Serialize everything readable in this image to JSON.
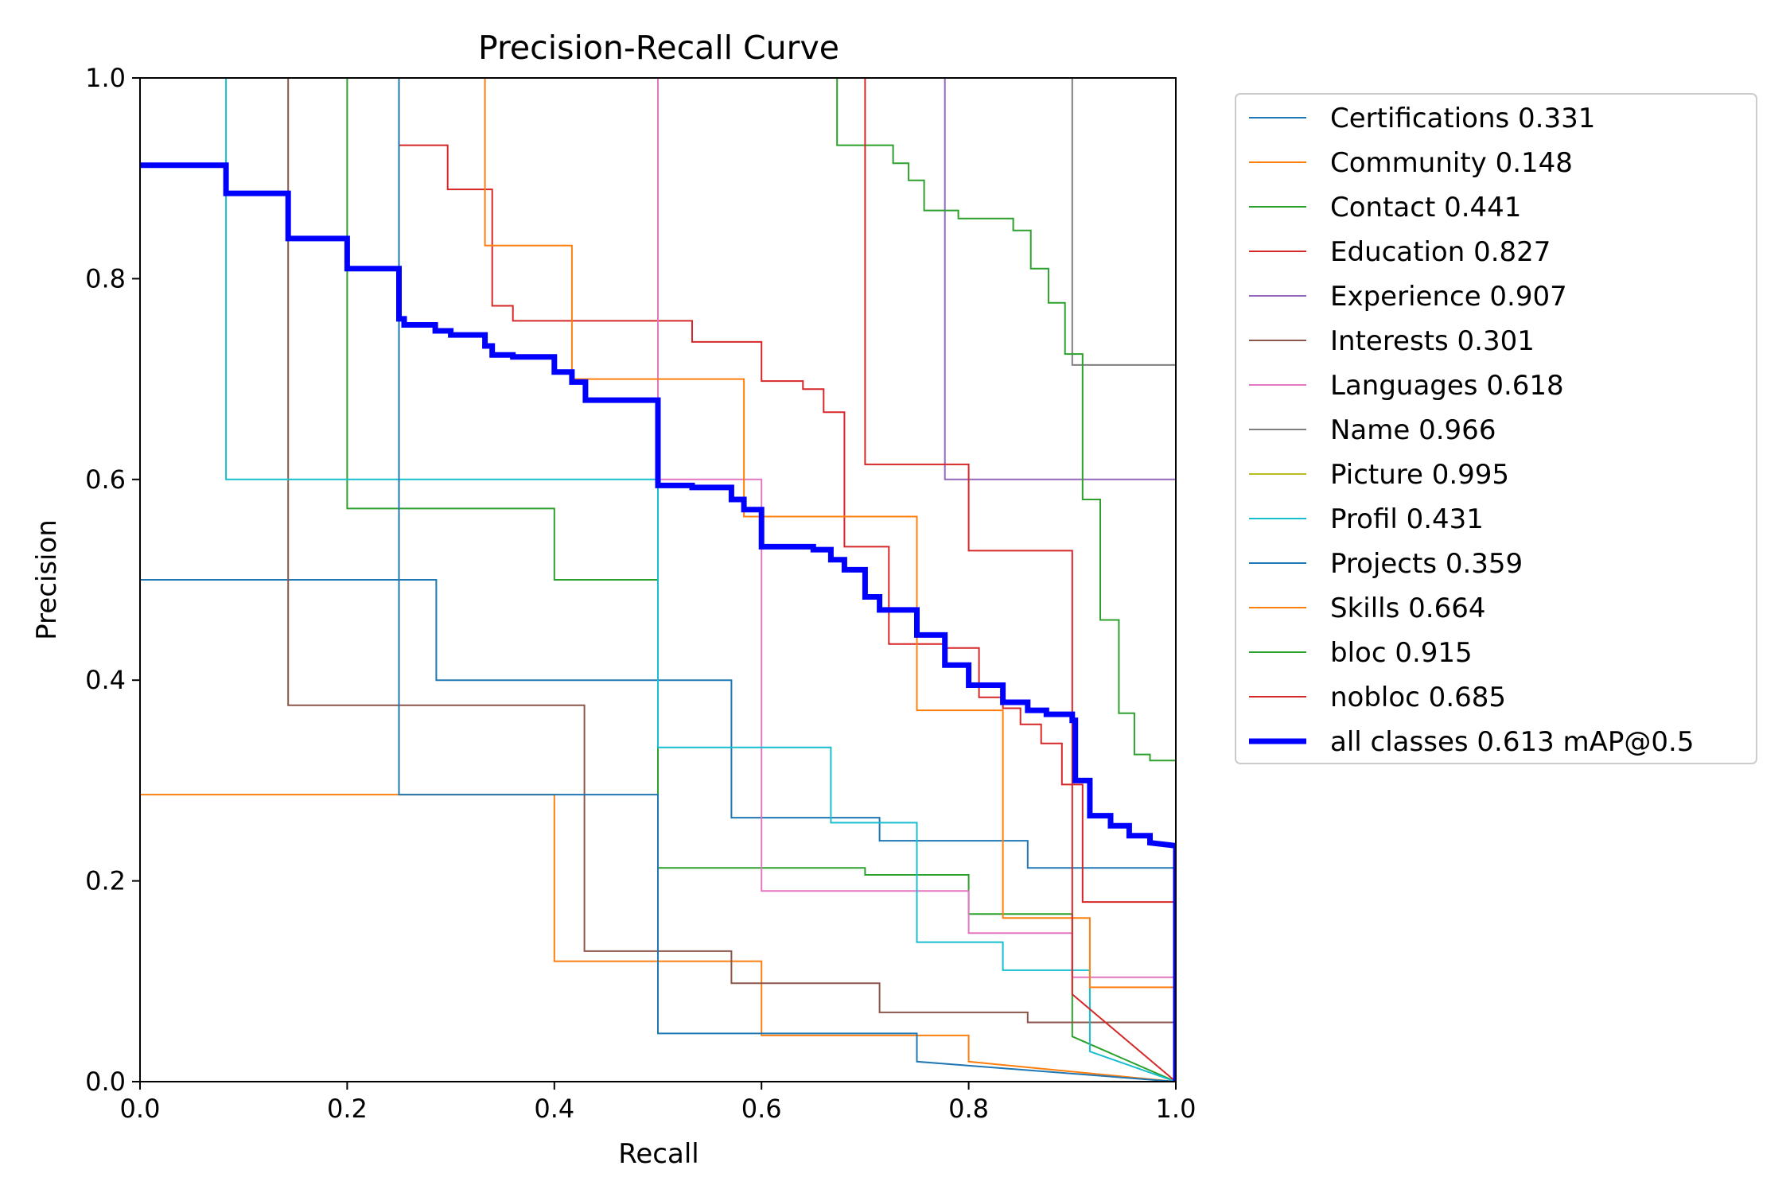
{
  "chart_data": {
    "type": "line",
    "title": "Precision-Recall Curve",
    "xlabel": "Recall",
    "ylabel": "Precision",
    "xlim": [
      0,
      1
    ],
    "ylim": [
      0,
      1
    ],
    "x_ticks": [
      "0.0",
      "0.2",
      "0.4",
      "0.6",
      "0.8",
      "1.0"
    ],
    "y_ticks": [
      "0.0",
      "0.2",
      "0.4",
      "0.6",
      "0.8",
      "1.0"
    ],
    "grid": false,
    "legend_position": "outside-right",
    "series": [
      {
        "name": "Certifications 0.331",
        "color": "#1f77b4",
        "width": 2,
        "points": [
          [
            0,
            0.5
          ],
          [
            0.286,
            0.5
          ],
          [
            0.286,
            0.4
          ],
          [
            0.571,
            0.4
          ],
          [
            0.571,
            0.263
          ],
          [
            0.714,
            0.263
          ],
          [
            0.714,
            0.24
          ],
          [
            0.857,
            0.24
          ],
          [
            0.857,
            0.213
          ],
          [
            1,
            0.213
          ],
          [
            1,
            0
          ]
        ]
      },
      {
        "name": "Community 0.148",
        "color": "#ff7f0e",
        "width": 2,
        "points": [
          [
            0,
            0.286
          ],
          [
            0.4,
            0.286
          ],
          [
            0.4,
            0.12
          ],
          [
            0.6,
            0.12
          ],
          [
            0.6,
            0.046
          ],
          [
            0.8,
            0.046
          ],
          [
            0.8,
            0.02
          ],
          [
            1,
            0
          ]
        ]
      },
      {
        "name": "Contact 0.441",
        "color": "#2ca02c",
        "width": 2,
        "points": [
          [
            0.2,
            1
          ],
          [
            0.2,
            0.571
          ],
          [
            0.4,
            0.571
          ],
          [
            0.4,
            0.5
          ],
          [
            0.5,
            0.5
          ],
          [
            0.5,
            0.213
          ],
          [
            0.7,
            0.213
          ],
          [
            0.7,
            0.206
          ],
          [
            0.8,
            0.206
          ],
          [
            0.8,
            0.167
          ],
          [
            0.9,
            0.167
          ],
          [
            0.9,
            0.045
          ],
          [
            1,
            0
          ]
        ]
      },
      {
        "name": "Education 0.827",
        "color": "#d62728",
        "width": 2,
        "points": [
          [
            0.25,
            1
          ],
          [
            0.25,
            0.933
          ],
          [
            0.297,
            0.933
          ],
          [
            0.297,
            0.889
          ],
          [
            0.34,
            0.889
          ],
          [
            0.34,
            0.773
          ],
          [
            0.36,
            0.773
          ],
          [
            0.36,
            0.758
          ],
          [
            0.533,
            0.758
          ],
          [
            0.533,
            0.737
          ],
          [
            0.6,
            0.737
          ],
          [
            0.6,
            0.698
          ],
          [
            0.64,
            0.698
          ],
          [
            0.64,
            0.69
          ],
          [
            0.66,
            0.69
          ],
          [
            0.66,
            0.667
          ],
          [
            0.68,
            0.667
          ],
          [
            0.68,
            0.533
          ],
          [
            0.723,
            0.533
          ],
          [
            0.723,
            0.436
          ],
          [
            0.777,
            0.436
          ],
          [
            0.777,
            0.432
          ],
          [
            0.81,
            0.432
          ],
          [
            0.81,
            0.383
          ],
          [
            0.833,
            0.383
          ],
          [
            0.833,
            0.372
          ],
          [
            0.85,
            0.372
          ],
          [
            0.85,
            0.356
          ],
          [
            0.87,
            0.356
          ],
          [
            0.87,
            0.337
          ],
          [
            0.89,
            0.337
          ],
          [
            0.89,
            0.296
          ],
          [
            0.91,
            0.296
          ],
          [
            0.91,
            0.179
          ],
          [
            1,
            0.179
          ],
          [
            1,
            0
          ]
        ]
      },
      {
        "name": "Experience 0.907",
        "color": "#9467bd",
        "width": 2,
        "points": [
          [
            0.777,
            1
          ],
          [
            0.777,
            0.6
          ],
          [
            1,
            0.6
          ],
          [
            1,
            0
          ]
        ]
      },
      {
        "name": "Interests 0.301",
        "color": "#8c564b",
        "width": 2,
        "points": [
          [
            0.143,
            1
          ],
          [
            0.143,
            0.375
          ],
          [
            0.429,
            0.375
          ],
          [
            0.429,
            0.13
          ],
          [
            0.571,
            0.13
          ],
          [
            0.571,
            0.098
          ],
          [
            0.714,
            0.098
          ],
          [
            0.714,
            0.069
          ],
          [
            0.857,
            0.069
          ],
          [
            0.857,
            0.059
          ],
          [
            1,
            0.059
          ],
          [
            1,
            0
          ]
        ]
      },
      {
        "name": "Languages 0.618",
        "color": "#e377c2",
        "width": 2,
        "points": [
          [
            0.5,
            1
          ],
          [
            0.5,
            0.6
          ],
          [
            0.6,
            0.6
          ],
          [
            0.6,
            0.19
          ],
          [
            0.8,
            0.19
          ],
          [
            0.8,
            0.148
          ],
          [
            0.9,
            0.148
          ],
          [
            0.9,
            0.104
          ],
          [
            1,
            0.104
          ],
          [
            1,
            0
          ]
        ]
      },
      {
        "name": "Name 0.966",
        "color": "#7f7f7f",
        "width": 2,
        "points": [
          [
            0.9,
            1
          ],
          [
            0.9,
            0.714
          ],
          [
            1,
            0.714
          ],
          [
            1,
            0
          ]
        ]
      },
      {
        "name": "Picture 0.995",
        "color": "#bcbd22",
        "width": 2,
        "points": [
          [
            1,
            1
          ],
          [
            1,
            0
          ]
        ]
      },
      {
        "name": "Profil 0.431",
        "color": "#17becf",
        "width": 2,
        "points": [
          [
            0.083,
            1
          ],
          [
            0.083,
            0.6
          ],
          [
            0.5,
            0.6
          ],
          [
            0.5,
            0.333
          ],
          [
            0.667,
            0.333
          ],
          [
            0.667,
            0.258
          ],
          [
            0.75,
            0.258
          ],
          [
            0.75,
            0.139
          ],
          [
            0.833,
            0.139
          ],
          [
            0.833,
            0.111
          ],
          [
            0.917,
            0.111
          ],
          [
            0.917,
            0.03
          ],
          [
            1,
            0
          ]
        ]
      },
      {
        "name": "Projects 0.359",
        "color": "#1f77b4",
        "width": 2,
        "points": [
          [
            0.25,
            1
          ],
          [
            0.25,
            0.286
          ],
          [
            0.5,
            0.286
          ],
          [
            0.5,
            0.048
          ],
          [
            0.75,
            0.048
          ],
          [
            0.75,
            0.02
          ],
          [
            1,
            0
          ]
        ]
      },
      {
        "name": "Skills 0.664",
        "color": "#ff7f0e",
        "width": 2,
        "points": [
          [
            0.333,
            1
          ],
          [
            0.333,
            0.833
          ],
          [
            0.417,
            0.833
          ],
          [
            0.417,
            0.7
          ],
          [
            0.583,
            0.7
          ],
          [
            0.583,
            0.563
          ],
          [
            0.75,
            0.563
          ],
          [
            0.75,
            0.37
          ],
          [
            0.833,
            0.37
          ],
          [
            0.833,
            0.163
          ],
          [
            0.917,
            0.163
          ],
          [
            0.917,
            0.094
          ],
          [
            1,
            0.094
          ],
          [
            1,
            0
          ]
        ]
      },
      {
        "name": "bloc 0.915",
        "color": "#2ca02c",
        "width": 2,
        "points": [
          [
            0.673,
            1
          ],
          [
            0.673,
            0.933
          ],
          [
            0.727,
            0.933
          ],
          [
            0.727,
            0.915
          ],
          [
            0.742,
            0.915
          ],
          [
            0.742,
            0.898
          ],
          [
            0.757,
            0.898
          ],
          [
            0.757,
            0.868
          ],
          [
            0.79,
            0.868
          ],
          [
            0.79,
            0.86
          ],
          [
            0.843,
            0.86
          ],
          [
            0.843,
            0.848
          ],
          [
            0.86,
            0.848
          ],
          [
            0.86,
            0.81
          ],
          [
            0.877,
            0.81
          ],
          [
            0.877,
            0.776
          ],
          [
            0.893,
            0.776
          ],
          [
            0.893,
            0.725
          ],
          [
            0.91,
            0.725
          ],
          [
            0.91,
            0.58
          ],
          [
            0.927,
            0.58
          ],
          [
            0.927,
            0.46
          ],
          [
            0.945,
            0.46
          ],
          [
            0.945,
            0.367
          ],
          [
            0.96,
            0.367
          ],
          [
            0.96,
            0.326
          ],
          [
            0.975,
            0.326
          ],
          [
            0.975,
            0.32
          ],
          [
            1,
            0.32
          ],
          [
            1,
            0
          ]
        ]
      },
      {
        "name": "nobloc 0.685",
        "color": "#d62728",
        "width": 2,
        "points": [
          [
            0.7,
            1
          ],
          [
            0.7,
            0.615
          ],
          [
            0.8,
            0.615
          ],
          [
            0.8,
            0.529
          ],
          [
            0.9,
            0.529
          ],
          [
            0.9,
            0.087
          ],
          [
            1,
            0
          ]
        ]
      },
      {
        "name": "all classes 0.613 mAP@0.5",
        "color": "#0000ff",
        "width": 7,
        "points": [
          [
            0,
            0.913
          ],
          [
            0.083,
            0.913
          ],
          [
            0.083,
            0.885
          ],
          [
            0.143,
            0.885
          ],
          [
            0.143,
            0.84
          ],
          [
            0.2,
            0.84
          ],
          [
            0.2,
            0.81
          ],
          [
            0.25,
            0.81
          ],
          [
            0.25,
            0.76
          ],
          [
            0.255,
            0.76
          ],
          [
            0.255,
            0.754
          ],
          [
            0.285,
            0.754
          ],
          [
            0.285,
            0.748
          ],
          [
            0.3,
            0.748
          ],
          [
            0.3,
            0.744
          ],
          [
            0.333,
            0.744
          ],
          [
            0.333,
            0.733
          ],
          [
            0.34,
            0.733
          ],
          [
            0.34,
            0.724
          ],
          [
            0.36,
            0.724
          ],
          [
            0.36,
            0.722
          ],
          [
            0.4,
            0.722
          ],
          [
            0.4,
            0.707
          ],
          [
            0.417,
            0.707
          ],
          [
            0.417,
            0.697
          ],
          [
            0.43,
            0.697
          ],
          [
            0.43,
            0.679
          ],
          [
            0.5,
            0.679
          ],
          [
            0.5,
            0.594
          ],
          [
            0.533,
            0.594
          ],
          [
            0.533,
            0.592
          ],
          [
            0.571,
            0.592
          ],
          [
            0.571,
            0.58
          ],
          [
            0.583,
            0.58
          ],
          [
            0.583,
            0.57
          ],
          [
            0.6,
            0.57
          ],
          [
            0.6,
            0.533
          ],
          [
            0.65,
            0.533
          ],
          [
            0.65,
            0.53
          ],
          [
            0.667,
            0.53
          ],
          [
            0.667,
            0.52
          ],
          [
            0.68,
            0.52
          ],
          [
            0.68,
            0.51
          ],
          [
            0.7,
            0.51
          ],
          [
            0.7,
            0.483
          ],
          [
            0.714,
            0.483
          ],
          [
            0.714,
            0.47
          ],
          [
            0.75,
            0.47
          ],
          [
            0.75,
            0.445
          ],
          [
            0.777,
            0.445
          ],
          [
            0.777,
            0.415
          ],
          [
            0.8,
            0.415
          ],
          [
            0.8,
            0.395
          ],
          [
            0.833,
            0.395
          ],
          [
            0.833,
            0.378
          ],
          [
            0.857,
            0.378
          ],
          [
            0.857,
            0.37
          ],
          [
            0.875,
            0.37
          ],
          [
            0.875,
            0.366
          ],
          [
            0.9,
            0.366
          ],
          [
            0.9,
            0.36
          ],
          [
            0.903,
            0.36
          ],
          [
            0.903,
            0.3
          ],
          [
            0.917,
            0.3
          ],
          [
            0.917,
            0.265
          ],
          [
            0.937,
            0.265
          ],
          [
            0.937,
            0.255
          ],
          [
            0.955,
            0.255
          ],
          [
            0.955,
            0.245
          ],
          [
            0.975,
            0.245
          ],
          [
            0.975,
            0.238
          ],
          [
            1,
            0.235
          ],
          [
            1,
            0
          ]
        ]
      }
    ]
  }
}
